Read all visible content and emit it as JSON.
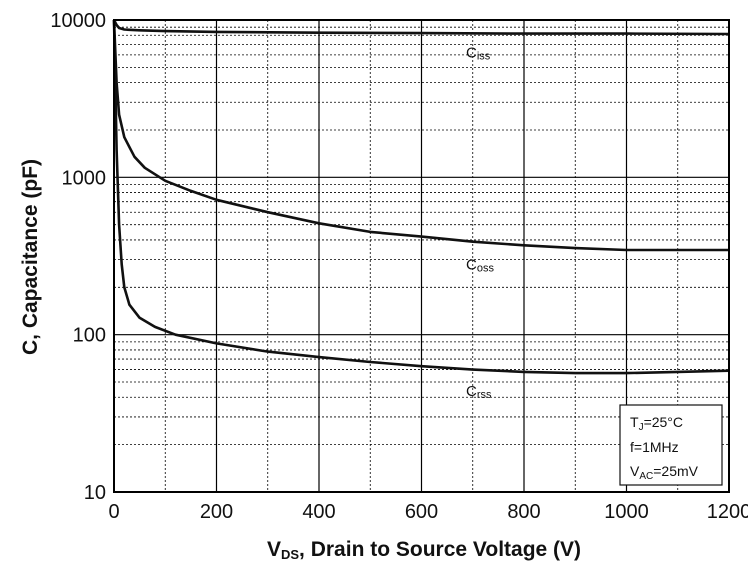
{
  "chart_data": {
    "type": "line",
    "xlabel": {
      "main": "V",
      "sub": "DS",
      "rest": ", Drain to Source Voltage (V)"
    },
    "ylabel": "C, Capacitance (pF)",
    "xlim": [
      0,
      1200
    ],
    "ylim": [
      10,
      10000
    ],
    "yscale": "log",
    "grid": true,
    "x_ticks": [
      "0",
      "200",
      "400",
      "600",
      "800",
      "1000",
      "1200"
    ],
    "y_ticks": [
      "10",
      "100",
      "1000",
      "10000"
    ],
    "series": [
      {
        "name": "Ciss",
        "label_main": "C",
        "label_sub": "iss",
        "x": [
          0,
          5,
          10,
          20,
          50,
          100,
          200,
          400,
          600,
          800,
          1000,
          1200
        ],
        "y": [
          10000,
          9300,
          8900,
          8700,
          8600,
          8500,
          8400,
          8300,
          8250,
          8200,
          8200,
          8150
        ]
      },
      {
        "name": "Coss",
        "label_main": "C",
        "label_sub": "oss",
        "x": [
          0,
          2,
          5,
          10,
          20,
          40,
          60,
          100,
          150,
          200,
          300,
          400,
          500,
          600,
          700,
          800,
          900,
          1000,
          1100,
          1200
        ],
        "y": [
          10000,
          7000,
          4000,
          2500,
          1800,
          1350,
          1150,
          950,
          820,
          720,
          600,
          510,
          450,
          420,
          390,
          370,
          355,
          345,
          345,
          345
        ]
      },
      {
        "name": "Crss",
        "label_main": "C",
        "label_sub": "rss",
        "x": [
          0,
          2,
          5,
          10,
          15,
          20,
          30,
          50,
          80,
          120,
          200,
          300,
          400,
          500,
          600,
          700,
          800,
          900,
          1000,
          1100,
          1200
        ],
        "y": [
          10000,
          5000,
          1500,
          500,
          280,
          200,
          155,
          128,
          112,
          100,
          88,
          78,
          72,
          67,
          63,
          60,
          58,
          57,
          57,
          58,
          59
        ]
      }
    ],
    "legend_lines": [
      {
        "main": "T",
        "sub": "J",
        "rest": "=25°C"
      },
      {
        "main": "f=1MHz",
        "sub": "",
        "rest": ""
      },
      {
        "main": "V",
        "sub": "AC",
        "rest": "=25mV"
      }
    ],
    "legend_placement": "bottom-right",
    "colors": {
      "line": "#111111",
      "grid": "#000000",
      "background": "#ffffff"
    }
  }
}
